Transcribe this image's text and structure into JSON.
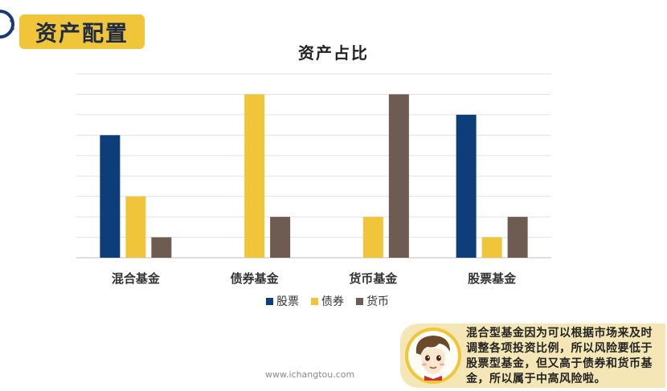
{
  "header": {
    "badge": "资产配置"
  },
  "chart_data": {
    "type": "bar",
    "title": "资产占比",
    "categories": [
      "混合基金",
      "债券基金",
      "货币基金",
      "股票基金"
    ],
    "series": [
      {
        "name": "股票",
        "color": "#0d3e7a",
        "values": [
          6,
          0,
          0,
          7
        ]
      },
      {
        "name": "债券",
        "color": "#f0c53a",
        "values": [
          3,
          8,
          2,
          1
        ]
      },
      {
        "name": "货币",
        "color": "#6e5b52",
        "values": [
          1,
          2,
          8,
          2
        ]
      }
    ],
    "ylim": [
      0,
      9
    ],
    "grid": true,
    "legend": "bottom"
  },
  "tip": {
    "text": "混合型基金因为可以根据市场来及时调整各项投资比例，所以风险要低于股票型基金，但又高于债券和货币基金，所以属于中高风险啦。"
  },
  "footer": {
    "watermark": "www.ichangtou.com"
  }
}
